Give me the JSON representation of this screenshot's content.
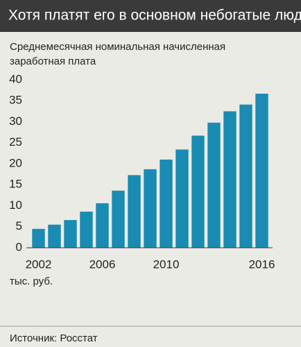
{
  "chart_data": {
    "type": "bar",
    "title": "Хотя платят его в основном небогатые люди",
    "subtitle": [
      "Среднемесячная номинальная начисленная",
      "заработная плата"
    ],
    "y_label": "тыс. руб.",
    "source": "Источник: Росстат",
    "categories": [
      "2002",
      null,
      null,
      null,
      "2006",
      null,
      null,
      null,
      "2010",
      null,
      null,
      null,
      null,
      null,
      "2016"
    ],
    "values": [
      4.5,
      5.5,
      6.6,
      8.6,
      10.6,
      13.6,
      17.3,
      18.7,
      21.0,
      23.4,
      26.7,
      29.8,
      32.5,
      34.1,
      36.7
    ],
    "color": "#1a8bb3",
    "ylim": [
      0,
      40
    ],
    "yticks": [
      0,
      5,
      10,
      15,
      20,
      25,
      30,
      35,
      40
    ],
    "grid": false
  }
}
